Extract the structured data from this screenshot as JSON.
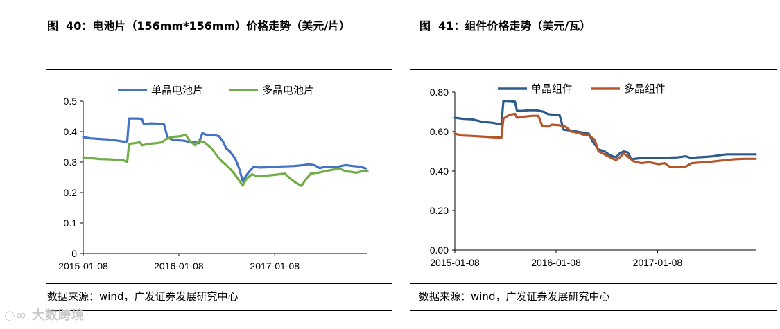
{
  "figures": [
    {
      "title": "图  40：电池片（156mm*156mm）价格走势（美元/片）",
      "source": "数据来源：wind，广发证券发展研究中心",
      "chart_data": {
        "type": "line",
        "title": "",
        "xlabel": "",
        "ylabel": "",
        "xlim": [
          "2015-01-08",
          "2017-12-28"
        ],
        "ylim": [
          0,
          0.5
        ],
        "y_ticks": [
          "0",
          "0.1",
          "0.2",
          "0.3",
          "0.4",
          "0.5"
        ],
        "x_ticks": [
          "2015-01-08",
          "2016-01-08",
          "2017-01-08"
        ],
        "legend_position": "top",
        "grid": false,
        "series": [
          {
            "name": "单晶电池片",
            "color": "#4472C4",
            "points": [
              [
                "2015-01-08",
                0.382
              ],
              [
                "2015-02-05",
                0.378
              ],
              [
                "2015-03-12",
                0.376
              ],
              [
                "2015-04-16",
                0.374
              ],
              [
                "2015-05-21",
                0.37
              ],
              [
                "2015-06-11",
                0.367
              ],
              [
                "2015-06-25",
                0.368
              ],
              [
                "2015-07-02",
                0.443
              ],
              [
                "2015-07-30",
                0.443
              ],
              [
                "2015-08-20",
                0.442
              ],
              [
                "2015-08-27",
                0.425
              ],
              [
                "2015-09-24",
                0.427
              ],
              [
                "2015-10-22",
                0.426
              ],
              [
                "2015-11-12",
                0.425
              ],
              [
                "2015-11-26",
                0.38
              ],
              [
                "2015-12-17",
                0.373
              ],
              [
                "2016-01-28",
                0.37
              ],
              [
                "2016-02-18",
                0.366
              ],
              [
                "2016-03-10",
                0.366
              ],
              [
                "2016-03-24",
                0.362
              ],
              [
                "2016-04-07",
                0.395
              ],
              [
                "2016-04-21",
                0.39
              ],
              [
                "2016-05-19",
                0.389
              ],
              [
                "2016-06-09",
                0.385
              ],
              [
                "2016-06-23",
                0.37
              ],
              [
                "2016-07-07",
                0.345
              ],
              [
                "2016-07-21",
                0.335
              ],
              [
                "2016-08-11",
                0.31
              ],
              [
                "2016-08-25",
                0.28
              ],
              [
                "2016-09-08",
                0.237
              ],
              [
                "2016-09-22",
                0.257
              ],
              [
                "2016-10-06",
                0.272
              ],
              [
                "2016-10-20",
                0.285
              ],
              [
                "2016-11-10",
                0.282
              ],
              [
                "2016-12-08",
                0.283
              ],
              [
                "2017-01-12",
                0.285
              ],
              [
                "2017-02-16",
                0.286
              ],
              [
                "2017-03-23",
                0.287
              ],
              [
                "2017-04-27",
                0.29
              ],
              [
                "2017-05-18",
                0.293
              ],
              [
                "2017-06-08",
                0.29
              ],
              [
                "2017-06-29",
                0.28
              ],
              [
                "2017-07-20",
                0.285
              ],
              [
                "2017-08-10",
                0.285
              ],
              [
                "2017-09-07",
                0.285
              ],
              [
                "2017-10-05",
                0.29
              ],
              [
                "2017-11-02",
                0.287
              ],
              [
                "2017-11-30",
                0.285
              ],
              [
                "2017-12-21",
                0.279
              ]
            ]
          },
          {
            "name": "多晶电池片",
            "color": "#70AD47",
            "points": [
              [
                "2015-01-08",
                0.316
              ],
              [
                "2015-02-05",
                0.313
              ],
              [
                "2015-03-12",
                0.31
              ],
              [
                "2015-04-16",
                0.309
              ],
              [
                "2015-05-21",
                0.307
              ],
              [
                "2015-06-11",
                0.306
              ],
              [
                "2015-06-25",
                0.3
              ],
              [
                "2015-07-02",
                0.36
              ],
              [
                "2015-07-23",
                0.362
              ],
              [
                "2015-08-13",
                0.365
              ],
              [
                "2015-08-20",
                0.355
              ],
              [
                "2015-09-17",
                0.36
              ],
              [
                "2015-10-15",
                0.362
              ],
              [
                "2015-11-05",
                0.365
              ],
              [
                "2015-11-19",
                0.375
              ],
              [
                "2015-12-10",
                0.382
              ],
              [
                "2016-01-14",
                0.385
              ],
              [
                "2016-02-04",
                0.389
              ],
              [
                "2016-02-18",
                0.37
              ],
              [
                "2016-03-10",
                0.355
              ],
              [
                "2016-03-24",
                0.37
              ],
              [
                "2016-04-14",
                0.365
              ],
              [
                "2016-05-12",
                0.345
              ],
              [
                "2016-06-02",
                0.32
              ],
              [
                "2016-06-23",
                0.3
              ],
              [
                "2016-07-14",
                0.285
              ],
              [
                "2016-08-04",
                0.265
              ],
              [
                "2016-08-25",
                0.24
              ],
              [
                "2016-09-08",
                0.223
              ],
              [
                "2016-09-22",
                0.245
              ],
              [
                "2016-10-13",
                0.26
              ],
              [
                "2016-11-03",
                0.253
              ],
              [
                "2016-12-01",
                0.255
              ],
              [
                "2017-01-05",
                0.258
              ],
              [
                "2017-01-26",
                0.26
              ],
              [
                "2017-02-16",
                0.262
              ],
              [
                "2017-03-09",
                0.245
              ],
              [
                "2017-03-30",
                0.232
              ],
              [
                "2017-04-20",
                0.222
              ],
              [
                "2017-05-04",
                0.24
              ],
              [
                "2017-05-25",
                0.262
              ],
              [
                "2017-06-22",
                0.265
              ],
              [
                "2017-07-20",
                0.27
              ],
              [
                "2017-08-17",
                0.275
              ],
              [
                "2017-09-14",
                0.278
              ],
              [
                "2017-10-05",
                0.27
              ],
              [
                "2017-10-26",
                0.268
              ],
              [
                "2017-11-16",
                0.265
              ],
              [
                "2017-12-07",
                0.27
              ],
              [
                "2017-12-28",
                0.27
              ]
            ]
          }
        ]
      }
    },
    {
      "title": "图  41：组件价格走势（美元/瓦）",
      "source": "数据来源：wind，广发证券发展研究中心",
      "chart_data": {
        "type": "line",
        "title": "",
        "xlabel": "",
        "ylabel": "",
        "xlim": [
          "2015-01-08",
          "2017-12-28"
        ],
        "ylim": [
          0,
          0.8
        ],
        "y_ticks": [
          "0.00",
          "0.20",
          "0.40",
          "0.60",
          "0.80"
        ],
        "x_ticks": [
          "2015-01-08",
          "2016-01-08",
          "2017-01-08"
        ],
        "legend_position": "top",
        "grid": false,
        "series": [
          {
            "name": "单晶组件",
            "color": "#2E5C8A",
            "points": [
              [
                "2015-01-08",
                0.67
              ],
              [
                "2015-02-05",
                0.665
              ],
              [
                "2015-03-12",
                0.662
              ],
              [
                "2015-04-16",
                0.65
              ],
              [
                "2015-05-21",
                0.645
              ],
              [
                "2015-06-11",
                0.64
              ],
              [
                "2015-06-25",
                0.635
              ],
              [
                "2015-07-02",
                0.755
              ],
              [
                "2015-07-23",
                0.755
              ],
              [
                "2015-08-13",
                0.752
              ],
              [
                "2015-08-20",
                0.705
              ],
              [
                "2015-09-10",
                0.705
              ],
              [
                "2015-10-01",
                0.708
              ],
              [
                "2015-10-29",
                0.708
              ],
              [
                "2015-11-26",
                0.7
              ],
              [
                "2015-12-10",
                0.688
              ],
              [
                "2016-01-07",
                0.685
              ],
              [
                "2016-01-21",
                0.682
              ],
              [
                "2016-02-04",
                0.61
              ],
              [
                "2016-03-03",
                0.605
              ],
              [
                "2016-03-24",
                0.6
              ],
              [
                "2016-04-14",
                0.595
              ],
              [
                "2016-05-05",
                0.59
              ],
              [
                "2016-05-19",
                0.55
              ],
              [
                "2016-06-09",
                0.51
              ],
              [
                "2016-06-30",
                0.5
              ],
              [
                "2016-07-21",
                0.48
              ],
              [
                "2016-08-11",
                0.47
              ],
              [
                "2016-08-25",
                0.49
              ],
              [
                "2016-09-08",
                0.5
              ],
              [
                "2016-09-22",
                0.495
              ],
              [
                "2016-10-06",
                0.46
              ],
              [
                "2016-11-03",
                0.465
              ],
              [
                "2016-12-08",
                0.468
              ],
              [
                "2017-01-12",
                0.468
              ],
              [
                "2017-02-16",
                0.468
              ],
              [
                "2017-03-23",
                0.47
              ],
              [
                "2017-04-20",
                0.475
              ],
              [
                "2017-05-11",
                0.465
              ],
              [
                "2017-06-01",
                0.47
              ],
              [
                "2017-06-29",
                0.472
              ],
              [
                "2017-07-27",
                0.475
              ],
              [
                "2017-08-17",
                0.48
              ],
              [
                "2017-09-14",
                0.485
              ],
              [
                "2017-10-19",
                0.485
              ],
              [
                "2017-11-23",
                0.485
              ],
              [
                "2017-12-28",
                0.485
              ]
            ]
          },
          {
            "name": "多晶组件",
            "color": "#B5562A",
            "points": [
              [
                "2015-01-08",
                0.59
              ],
              [
                "2015-02-05",
                0.58
              ],
              [
                "2015-03-12",
                0.578
              ],
              [
                "2015-04-16",
                0.575
              ],
              [
                "2015-05-21",
                0.572
              ],
              [
                "2015-06-11",
                0.57
              ],
              [
                "2015-06-25",
                0.57
              ],
              [
                "2015-07-02",
                0.665
              ],
              [
                "2015-07-23",
                0.685
              ],
              [
                "2015-08-13",
                0.69
              ],
              [
                "2015-08-20",
                0.67
              ],
              [
                "2015-09-10",
                0.675
              ],
              [
                "2015-10-15",
                0.68
              ],
              [
                "2015-11-05",
                0.68
              ],
              [
                "2015-11-19",
                0.63
              ],
              [
                "2015-12-10",
                0.625
              ],
              [
                "2015-12-24",
                0.635
              ],
              [
                "2016-01-21",
                0.632
              ],
              [
                "2016-02-11",
                0.625
              ],
              [
                "2016-03-03",
                0.6
              ],
              [
                "2016-03-24",
                0.595
              ],
              [
                "2016-04-14",
                0.585
              ],
              [
                "2016-05-05",
                0.58
              ],
              [
                "2016-05-26",
                0.56
              ],
              [
                "2016-06-09",
                0.5
              ],
              [
                "2016-06-30",
                0.485
              ],
              [
                "2016-07-21",
                0.47
              ],
              [
                "2016-08-11",
                0.455
              ],
              [
                "2016-08-25",
                0.47
              ],
              [
                "2016-09-08",
                0.49
              ],
              [
                "2016-09-22",
                0.475
              ],
              [
                "2016-10-13",
                0.45
              ],
              [
                "2016-11-10",
                0.44
              ],
              [
                "2016-12-08",
                0.445
              ],
              [
                "2017-01-12",
                0.435
              ],
              [
                "2017-02-02",
                0.44
              ],
              [
                "2017-02-23",
                0.42
              ],
              [
                "2017-03-23",
                0.42
              ],
              [
                "2017-04-20",
                0.423
              ],
              [
                "2017-05-11",
                0.44
              ],
              [
                "2017-06-08",
                0.443
              ],
              [
                "2017-07-06",
                0.445
              ],
              [
                "2017-08-03",
                0.45
              ],
              [
                "2017-09-07",
                0.455
              ],
              [
                "2017-10-12",
                0.46
              ],
              [
                "2017-11-16",
                0.462
              ],
              [
                "2017-12-28",
                0.462
              ]
            ]
          }
        ]
      }
    }
  ]
}
